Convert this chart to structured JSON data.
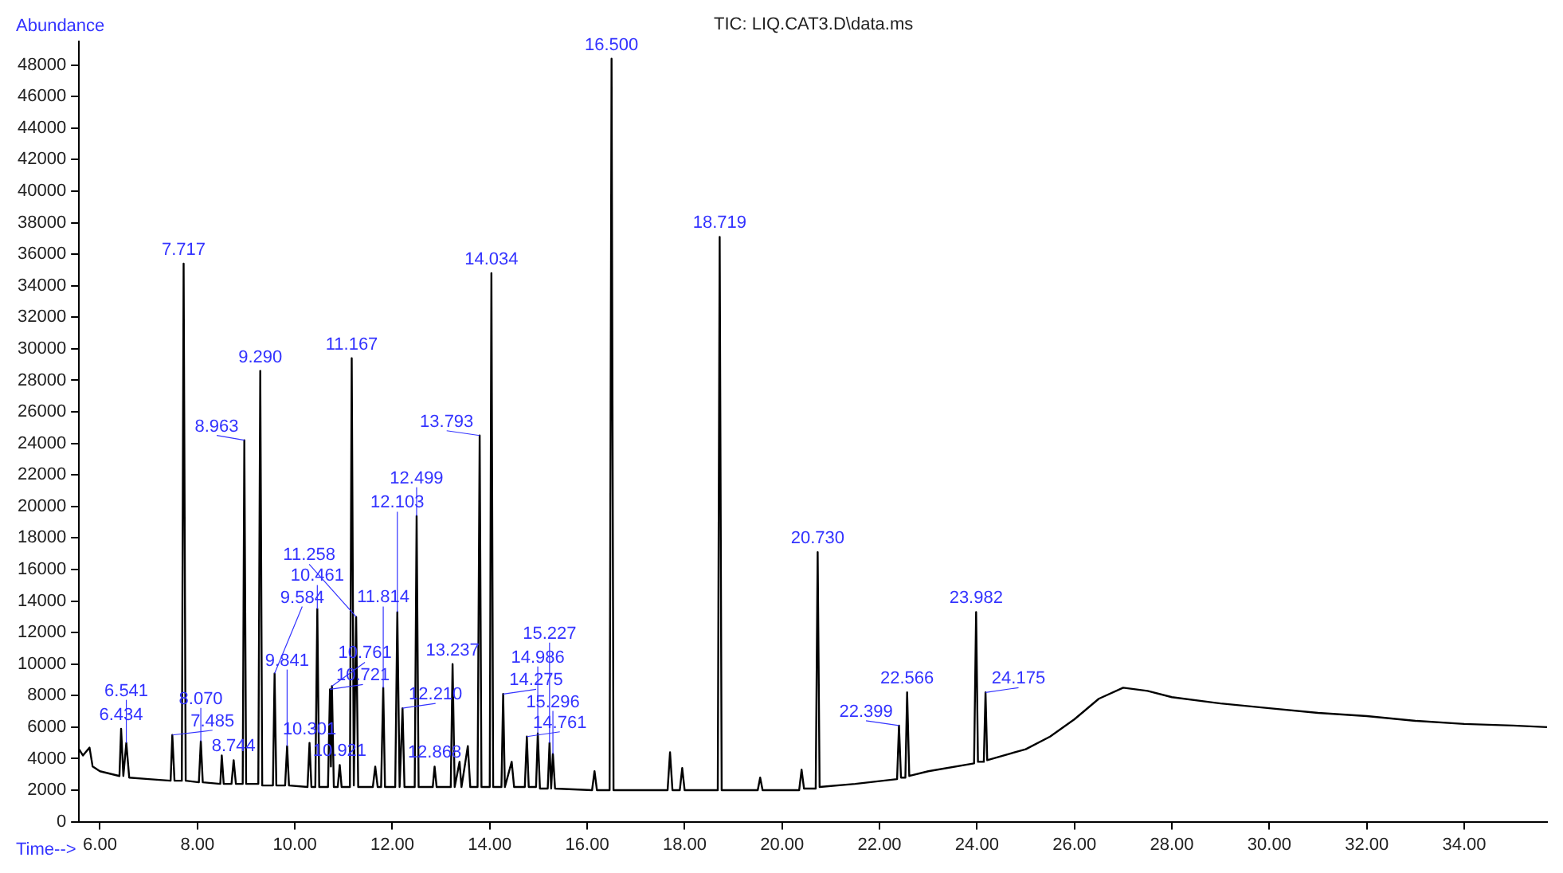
{
  "chart_data": {
    "type": "line",
    "title": "TIC: LIQ.CAT3.D\\data.ms",
    "xlabel": "Time-->",
    "ylabel": "Abundance",
    "xlim": [
      5.57,
      35.7
    ],
    "ylim": [
      0,
      49500
    ],
    "xticks": [
      {
        "value": 6,
        "label": "6.00"
      },
      {
        "value": 8,
        "label": "8.00"
      },
      {
        "value": 10,
        "label": "10.00"
      },
      {
        "value": 12,
        "label": "12.00"
      },
      {
        "value": 14,
        "label": "14.00"
      },
      {
        "value": 16,
        "label": "16.00"
      },
      {
        "value": 18,
        "label": "18.00"
      },
      {
        "value": 20,
        "label": "20.00"
      },
      {
        "value": 22,
        "label": "22.00"
      },
      {
        "value": 24,
        "label": "24.00"
      },
      {
        "value": 26,
        "label": "26.00"
      },
      {
        "value": 28,
        "label": "28.00"
      },
      {
        "value": 30,
        "label": "30.00"
      },
      {
        "value": 32,
        "label": "32.00"
      },
      {
        "value": 34,
        "label": "34.00"
      }
    ],
    "yticks": [
      0,
      2000,
      4000,
      6000,
      8000,
      10000,
      12000,
      14000,
      16000,
      18000,
      20000,
      22000,
      24000,
      26000,
      28000,
      30000,
      32000,
      34000,
      36000,
      38000,
      40000,
      42000,
      44000,
      46000,
      48000
    ],
    "marker": "none",
    "line_style": "solid",
    "series": [
      {
        "color": "#000000",
        "x": [
          5.57,
          5.65,
          5.786,
          5.85,
          6.0,
          6.4,
          6.434,
          6.48,
          6.541,
          6.6,
          7.0,
          7.45,
          7.485,
          7.53,
          7.68,
          7.717,
          7.76,
          8.03,
          8.07,
          8.11,
          8.47,
          8.5,
          8.54,
          8.7,
          8.744,
          8.79,
          8.93,
          8.963,
          9.0,
          9.25,
          9.29,
          9.33,
          9.55,
          9.584,
          9.62,
          9.8,
          9.841,
          9.88,
          10.26,
          10.301,
          10.34,
          10.42,
          10.461,
          10.5,
          10.68,
          10.721,
          10.74,
          10.761,
          10.8,
          10.88,
          10.921,
          10.96,
          11.13,
          11.167,
          11.21,
          11.258,
          11.3,
          11.6,
          11.65,
          11.7,
          11.77,
          11.814,
          11.85,
          12.06,
          12.103,
          12.15,
          12.21,
          12.25,
          12.46,
          12.499,
          12.54,
          12.83,
          12.868,
          12.91,
          13.2,
          13.237,
          13.28,
          13.38,
          13.42,
          13.55,
          13.6,
          13.75,
          13.793,
          13.83,
          14.0,
          14.034,
          14.07,
          14.24,
          14.275,
          14.31,
          14.45,
          14.5,
          14.72,
          14.761,
          14.8,
          14.95,
          14.986,
          15.03,
          15.19,
          15.227,
          15.26,
          15.296,
          15.34,
          16.1,
          16.15,
          16.2,
          16.46,
          16.5,
          16.54,
          17.65,
          17.7,
          17.75,
          17.9,
          17.95,
          18.0,
          18.68,
          18.719,
          18.76,
          19.5,
          19.55,
          19.6,
          20.35,
          20.4,
          20.45,
          20.69,
          20.73,
          20.77,
          21.5,
          22.36,
          22.399,
          22.44,
          22.53,
          22.566,
          22.61,
          23.0,
          23.94,
          23.982,
          24.02,
          24.14,
          24.175,
          24.21,
          25.0,
          25.5,
          26.0,
          26.5,
          27.0,
          27.5,
          28.0,
          29.0,
          30.0,
          31.0,
          32.0,
          33.0,
          34.0,
          35.0,
          35.7
        ],
        "values": [
          4600,
          4200,
          4700,
          3500,
          3200,
          2900,
          5900,
          2900,
          5000,
          2800,
          2700,
          2600,
          5500,
          2600,
          2600,
          35400,
          2600,
          2500,
          5100,
          2500,
          2400,
          4200,
          2400,
          2400,
          3900,
          2400,
          2400,
          24200,
          2400,
          2400,
          28600,
          2300,
          2300,
          9400,
          2300,
          2300,
          4800,
          2300,
          2200,
          5000,
          2200,
          2200,
          13500,
          2200,
          2200,
          8400,
          3500,
          8600,
          2200,
          2200,
          3600,
          2200,
          2200,
          29400,
          2300,
          13000,
          2200,
          2200,
          3500,
          2200,
          2200,
          8500,
          2200,
          2200,
          13300,
          2200,
          7200,
          2200,
          2200,
          19400,
          2200,
          2200,
          3500,
          2200,
          2200,
          10000,
          2200,
          3800,
          2200,
          4800,
          2200,
          2200,
          24500,
          2200,
          2200,
          34800,
          2200,
          2200,
          8100,
          2200,
          3800,
          2200,
          2200,
          5400,
          2200,
          2200,
          5600,
          2100,
          2100,
          5000,
          2100,
          4300,
          2100,
          2000,
          3200,
          2000,
          2000,
          48400,
          2000,
          2000,
          4400,
          2000,
          2000,
          3400,
          2000,
          2000,
          37100,
          2000,
          2000,
          2800,
          2000,
          2000,
          3300,
          2100,
          2100,
          17100,
          2200,
          2400,
          2700,
          6100,
          2800,
          2800,
          8200,
          2900,
          3200,
          3700,
          13300,
          3800,
          3800,
          8200,
          3900,
          4600,
          5400,
          6500,
          7800,
          8500,
          8300,
          7900,
          7500,
          7200,
          6900,
          6700,
          6400,
          6200,
          6100,
          6000
        ]
      }
    ],
    "annotations": [
      {
        "text": "6.434",
        "x": 6.434,
        "y": 5900
      },
      {
        "text": "6.541",
        "x": 6.541,
        "y": 5000
      },
      {
        "text": "7.485",
        "x": 7.485,
        "y": 5500
      },
      {
        "text": "7.717",
        "x": 7.717,
        "y": 35400
      },
      {
        "text": "8.070",
        "x": 8.07,
        "y": 5100
      },
      {
        "text": "8.744",
        "x": 8.744,
        "y": 3900
      },
      {
        "text": "8.963",
        "x": 8.963,
        "y": 24200
      },
      {
        "text": "9.290",
        "x": 9.29,
        "y": 28600
      },
      {
        "text": "9.584",
        "x": 9.584,
        "y": 9400
      },
      {
        "text": "9.841",
        "x": 9.841,
        "y": 4800
      },
      {
        "text": "10.301",
        "x": 10.301,
        "y": 5000
      },
      {
        "text": "10.461",
        "x": 10.461,
        "y": 13500
      },
      {
        "text": "10.721",
        "x": 10.721,
        "y": 8400
      },
      {
        "text": "10.761",
        "x": 10.761,
        "y": 8600
      },
      {
        "text": "10.921",
        "x": 10.921,
        "y": 3600
      },
      {
        "text": "11.167",
        "x": 11.167,
        "y": 29400
      },
      {
        "text": "11.258",
        "x": 11.258,
        "y": 13000
      },
      {
        "text": "11.814",
        "x": 11.814,
        "y": 8500
      },
      {
        "text": "12.103",
        "x": 12.103,
        "y": 13300
      },
      {
        "text": "12.210",
        "x": 12.21,
        "y": 7200
      },
      {
        "text": "12.499",
        "x": 12.499,
        "y": 19400
      },
      {
        "text": "12.868",
        "x": 12.868,
        "y": 3500
      },
      {
        "text": "13.237",
        "x": 13.237,
        "y": 10000
      },
      {
        "text": "13.793",
        "x": 13.793,
        "y": 24500
      },
      {
        "text": "14.034",
        "x": 14.034,
        "y": 34800
      },
      {
        "text": "14.275",
        "x": 14.275,
        "y": 8100
      },
      {
        "text": "14.761",
        "x": 14.761,
        "y": 5400
      },
      {
        "text": "14.986",
        "x": 14.986,
        "y": 5600
      },
      {
        "text": "15.227",
        "x": 15.227,
        "y": 5000
      },
      {
        "text": "15.296",
        "x": 15.296,
        "y": 4300
      },
      {
        "text": "16.500",
        "x": 16.5,
        "y": 48400
      },
      {
        "text": "18.719",
        "x": 18.719,
        "y": 37100
      },
      {
        "text": "20.730",
        "x": 20.73,
        "y": 17100
      },
      {
        "text": "22.399",
        "x": 22.399,
        "y": 6100
      },
      {
        "text": "22.566",
        "x": 22.566,
        "y": 8200
      },
      {
        "text": "23.982",
        "x": 23.982,
        "y": 13300
      },
      {
        "text": "24.175",
        "x": 24.175,
        "y": 8200
      }
    ]
  }
}
